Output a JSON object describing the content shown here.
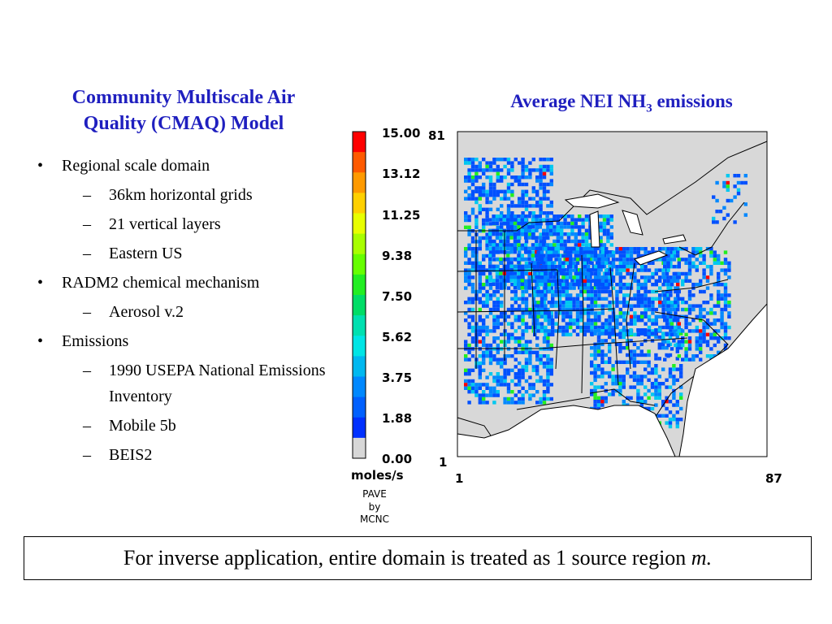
{
  "left": {
    "title_line1": "Community Multiscale Air",
    "title_line2": "Quality (CMAQ) Model",
    "bullets": [
      {
        "text": "Regional scale domain",
        "sub": [
          "36km horizontal grids",
          "21 vertical layers",
          "Eastern US"
        ]
      },
      {
        "text": "RADM2 chemical mechanism",
        "sub": [
          "Aerosol v.2"
        ]
      },
      {
        "text": "Emissions",
        "sub": [
          "1990 USEPA National Emissions Inventory",
          "Mobile 5b",
          "BEIS2"
        ]
      }
    ]
  },
  "map": {
    "title_pre": "Average NEI NH",
    "title_sub": "3",
    "title_post": " emissions",
    "colorbar": {
      "labels": [
        "15.00",
        "13.12",
        "11.25",
        "9.38",
        "7.50",
        "5.62",
        "3.75",
        "1.88",
        "0.00"
      ],
      "unit": "moles/s",
      "colors": [
        "#ff0000",
        "#ff5a00",
        "#ff9a00",
        "#ffd000",
        "#e8ff00",
        "#a8ff00",
        "#66ff00",
        "#22ee22",
        "#00dd66",
        "#00e0b0",
        "#00e5e5",
        "#00b8f0",
        "#0088ff",
        "#0060ff",
        "#0030ff",
        "#d7d7d7"
      ]
    },
    "axis": {
      "y_top": "81",
      "y_bottom": "1",
      "x_left": "1",
      "x_right": "87"
    },
    "credit": {
      "line1": "PAVE",
      "line2": "by",
      "line3": "MCNC"
    },
    "map_colors": {
      "land": "#d8d8d8",
      "cells": [
        "#0050ff",
        "#0088ff",
        "#00c8f0",
        "#22ee22",
        "#ff0000"
      ]
    }
  },
  "footer": {
    "text": "For inverse application, entire domain is treated as 1 source region ",
    "italic": "m."
  }
}
